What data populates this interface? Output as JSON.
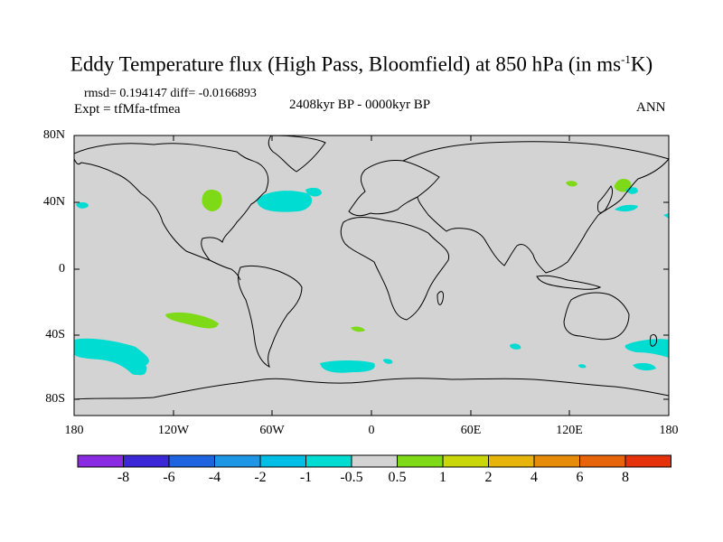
{
  "title": "Eddy Temperature flux (High Pass, Bloomfield) at 850 hPa (in ms",
  "title_sup": "-1",
  "title_end": "K)",
  "stats": "rmsd= 0.194147 diff= -0.0166893",
  "expt": "Expt = tfMfa-tfmea",
  "period": "2408kyr BP - 0000kyr BP",
  "season": "ANN",
  "map": {
    "land_color": "#d3d3d3",
    "lat_ticks": [
      "80N",
      "40N",
      "0",
      "40S",
      "80S"
    ],
    "lon_ticks": [
      "180",
      "120W",
      "60W",
      "0",
      "60E",
      "120E",
      "180"
    ]
  },
  "colorbar": {
    "colors": [
      "#8a2be2",
      "#3c27d6",
      "#1e64e0",
      "#1e96e6",
      "#00bee6",
      "#00dcd2",
      "#d3d3d3",
      "#7ed916",
      "#c8d60a",
      "#e6b40a",
      "#e68c0a",
      "#e6640a",
      "#e6320a"
    ],
    "labels": [
      "-8",
      "-6",
      "-4",
      "-2",
      "-1",
      "-0.5",
      "0.5",
      "1",
      "2",
      "4",
      "6",
      "8"
    ]
  },
  "field_colors": {
    "cyan": "#00dcd2",
    "green": "#7ed916"
  }
}
